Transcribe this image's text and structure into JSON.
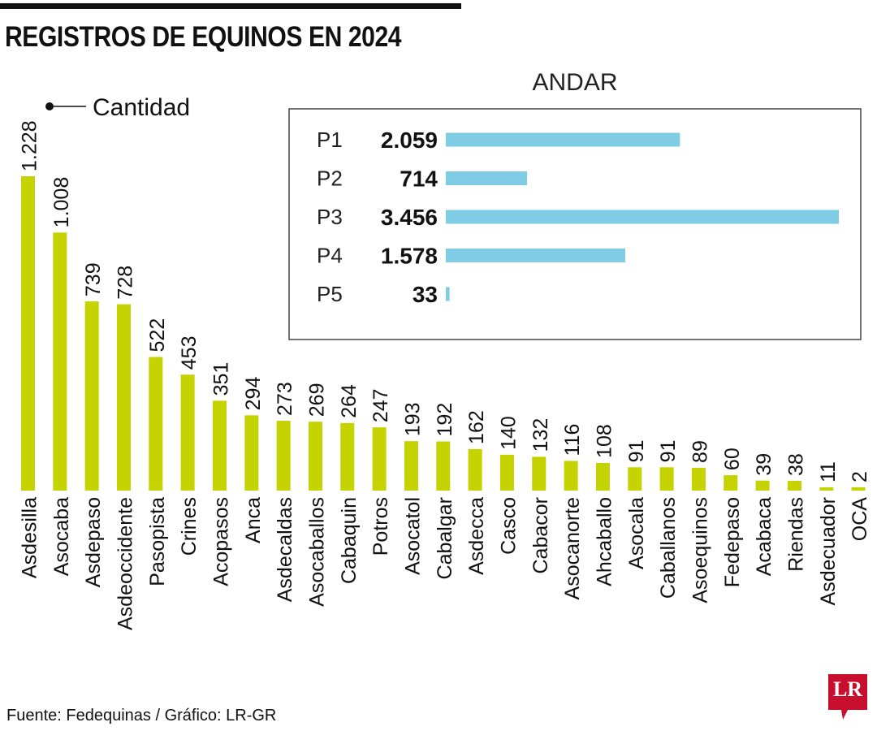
{
  "header": {
    "title": "REGISTROS DE EQUINOS EN 2024"
  },
  "legend": {
    "label": "Cantidad"
  },
  "inset": {
    "title": "ANDAR"
  },
  "footer": {
    "source": "Fuente: Fedequinas / Gráfico: LR-GR",
    "logo": "LR"
  },
  "colors": {
    "main_bar": "#c5d300",
    "inset_bar": "#7ecde5",
    "text": "#111111",
    "logo": "#c8102e"
  },
  "chart_data": [
    {
      "type": "bar",
      "title": "REGISTROS DE EQUINOS EN 2024",
      "orientation": "vertical",
      "series_label": "Cantidad",
      "categories": [
        "Asdesilla",
        "Asocaba",
        "Asdepaso",
        "Asdeoccidente",
        "Pasopista",
        "Crines",
        "Acopasos",
        "Anca",
        "Asdecaldas",
        "Asocaballos",
        "Cabaquin",
        "Potros",
        "Asocatol",
        "Cabalgar",
        "Asdecca",
        "Casco",
        "Cabacor",
        "Asocanorte",
        "Ahcaballo",
        "Asocala",
        "Caballanos",
        "Asoequinos",
        "Fedepaso",
        "Acabaca",
        "Riendas",
        "Asdecuador",
        "OCA"
      ],
      "values": [
        1228,
        1008,
        739,
        728,
        522,
        453,
        351,
        294,
        273,
        269,
        264,
        247,
        193,
        192,
        162,
        140,
        132,
        116,
        108,
        91,
        91,
        89,
        60,
        39,
        38,
        11,
        2
      ],
      "value_labels": [
        "1.228",
        "1.008",
        "739",
        "728",
        "522",
        "453",
        "351",
        "294",
        "273",
        "269",
        "264",
        "247",
        "193",
        "192",
        "162",
        "140",
        "132",
        "116",
        "108",
        "91",
        "91",
        "89",
        "60",
        "39",
        "38",
        "11",
        "2"
      ],
      "ylim": [
        0,
        1228
      ]
    },
    {
      "type": "bar",
      "title": "ANDAR",
      "orientation": "horizontal",
      "categories": [
        "P1",
        "P2",
        "P3",
        "P4",
        "P5"
      ],
      "values": [
        2059,
        714,
        3456,
        1578,
        33
      ],
      "value_labels": [
        "2.059",
        "714",
        "3.456",
        "1.578",
        "33"
      ],
      "xlim": [
        0,
        3456
      ]
    }
  ]
}
